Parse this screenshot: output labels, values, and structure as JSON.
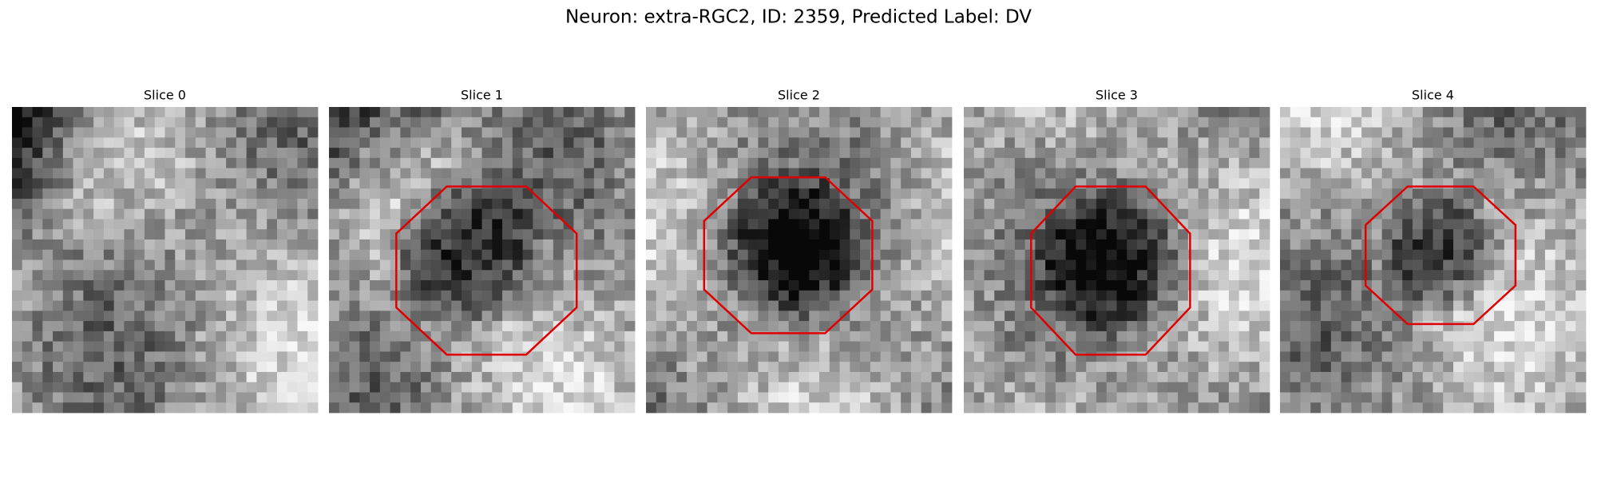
{
  "figure": {
    "title": "Neuron: extra-RGC2, ID: 2359, Predicted Label: DV",
    "panels": [
      {
        "title": "Slice 0"
      },
      {
        "title": "Slice 1"
      },
      {
        "title": "Slice 2"
      },
      {
        "title": "Slice 3"
      },
      {
        "title": "Slice 4"
      }
    ]
  }
}
